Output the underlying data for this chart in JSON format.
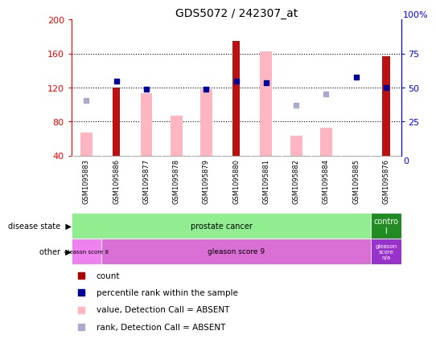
{
  "title": "GDS5072 / 242307_at",
  "samples": [
    "GSM1095883",
    "GSM1095886",
    "GSM1095877",
    "GSM1095878",
    "GSM1095879",
    "GSM1095880",
    "GSM1095881",
    "GSM1095882",
    "GSM1095884",
    "GSM1095885",
    "GSM1095876"
  ],
  "count_values": [
    null,
    120,
    null,
    null,
    null,
    175,
    null,
    null,
    null,
    null,
    157
  ],
  "pink_bar_values": [
    67,
    null,
    113,
    87,
    118,
    null,
    163,
    63,
    73,
    null,
    null
  ],
  "blue_square_values": [
    null,
    128,
    118,
    null,
    118,
    128,
    126,
    null,
    null,
    132,
    120
  ],
  "lavender_square_values": [
    105,
    null,
    null,
    null,
    null,
    null,
    null,
    99,
    112,
    null,
    null
  ],
  "ylim": [
    40,
    200
  ],
  "y_ticks_left": [
    40,
    80,
    120,
    160,
    200
  ],
  "y_ticks_right": [
    0,
    25,
    50,
    75,
    100
  ],
  "disease_state_groups": [
    {
      "label": "prostate cancer",
      "start": 0,
      "end": 10,
      "color": "#90EE90"
    },
    {
      "label": "contro\nl",
      "start": 10,
      "end": 11,
      "color": "#228B22"
    }
  ],
  "other_groups": [
    {
      "label": "gleason score 8",
      "start": 0,
      "end": 1,
      "color": "#EE82EE"
    },
    {
      "label": "gleason score 9",
      "start": 1,
      "end": 10,
      "color": "#DA70D6"
    },
    {
      "label": "gleason\nscore\nn/a",
      "start": 10,
      "end": 11,
      "color": "#9932CC"
    }
  ],
  "legend_items": [
    {
      "label": "count",
      "color": "#AA0000"
    },
    {
      "label": "percentile rank within the sample",
      "color": "#000099"
    },
    {
      "label": "value, Detection Call = ABSENT",
      "color": "#FFB6C1"
    },
    {
      "label": "rank, Detection Call = ABSENT",
      "color": "#AAAACC"
    }
  ],
  "bar_color_red": "#BB1111",
  "bar_color_pink": "#FFB6C1",
  "square_color_blue": "#000099",
  "square_color_lavender": "#AAAACC",
  "label_area_bg": "#D3D3D3",
  "col_line_color": "#AAAAAA"
}
